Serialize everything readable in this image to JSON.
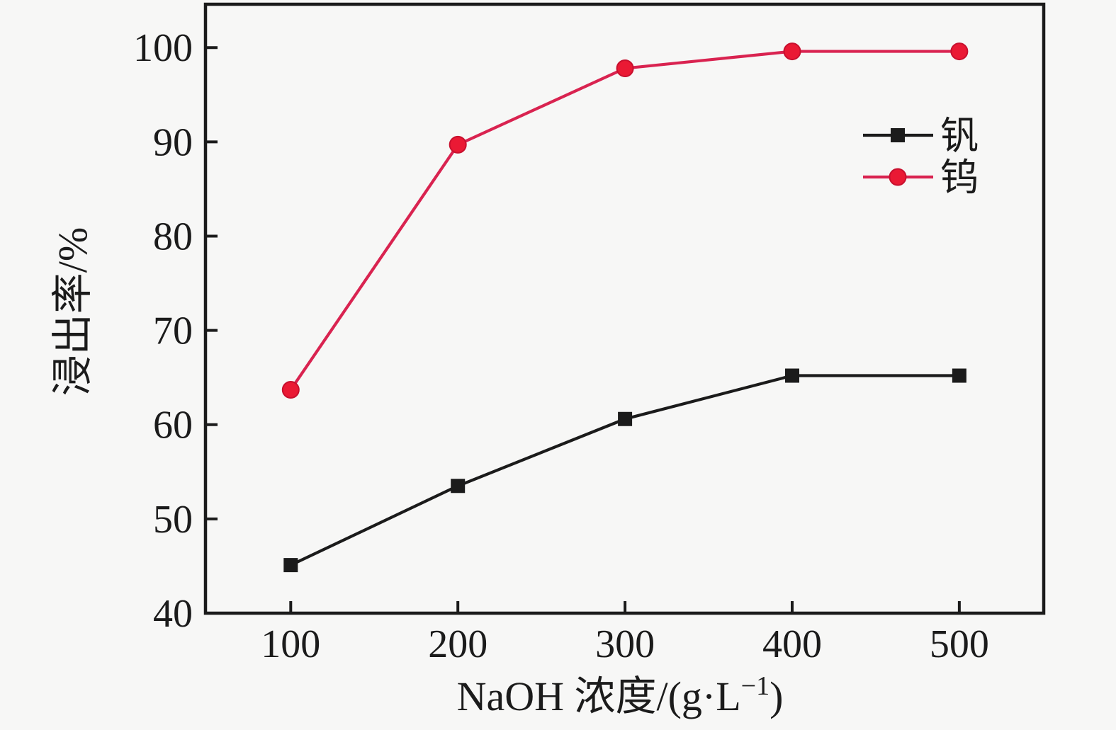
{
  "figure": {
    "background_color": "#f7f7f6",
    "axis_color": "#1b1b1b",
    "text_color": "#1b1b1b"
  },
  "chart_data": {
    "type": "line",
    "title": "",
    "xlabel": "NaOH 浓度/(g·L⁻¹)",
    "ylabel": "浸出率/%",
    "x": [
      100,
      200,
      300,
      400,
      500
    ],
    "x_tick_labels": [
      "100",
      "200",
      "300",
      "400",
      "500"
    ],
    "y_ticks": [
      40,
      50,
      60,
      70,
      80,
      90,
      100
    ],
    "y_tick_labels": [
      "40",
      "50",
      "60",
      "70",
      "80",
      "90",
      "100"
    ],
    "xlim": [
      49,
      550.5
    ],
    "ylim": [
      40,
      104.6
    ],
    "grid": false,
    "legend": {
      "position": "inside-upper-right",
      "border": false,
      "entries": [
        "钒",
        "钨"
      ]
    },
    "series": [
      {
        "name": "钒",
        "marker": "square",
        "line_color": "#1b1b1b",
        "marker_fill": "#1b1b1b",
        "marker_edge": "#1b1b1b",
        "values": [
          45.1,
          53.5,
          60.6,
          65.2,
          65.2
        ]
      },
      {
        "name": "钨",
        "marker": "circle",
        "line_color": "#d92350",
        "marker_fill": "#ea1934",
        "marker_edge": "#c8102e",
        "values": [
          63.7,
          89.7,
          97.8,
          99.6,
          99.6
        ]
      }
    ]
  }
}
